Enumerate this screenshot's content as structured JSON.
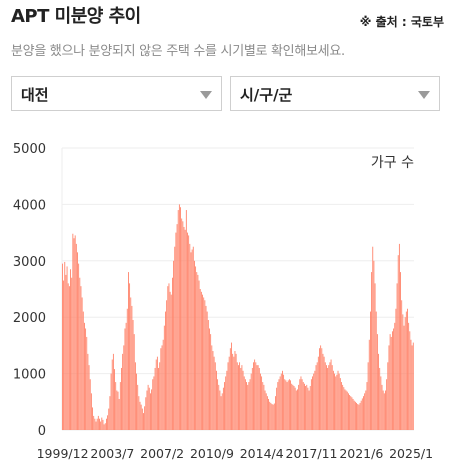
{
  "header": {
    "title": "APT 미분양 추이",
    "source": "※ 출처 : 국토부",
    "subtitle": "분양을 했으나 분양되지 않은 주택 수를 시기별로 확인해보세요."
  },
  "filters": {
    "region": "대전",
    "district": "시/구/군"
  },
  "colors": {
    "bar": "#ff8066",
    "grid": "#eeeeee",
    "axis": "#333333"
  },
  "chart_data": {
    "type": "bar",
    "series_label": "가구 수",
    "ylim": [
      0,
      5000
    ],
    "y_ticks": [
      0,
      1000,
      2000,
      3000,
      4000,
      5000
    ],
    "x_tick_labels": [
      "1999/12",
      "2003/7",
      "2007/2",
      "2010/9",
      "2014/4",
      "2017/11",
      "2021/6",
      "2025/1"
    ],
    "x_tick_index": [
      0,
      43,
      86,
      129,
      172,
      215,
      258,
      301
    ],
    "grid": "horizontal",
    "values": [
      2950,
      2650,
      2980,
      2750,
      2900,
      2600,
      2550,
      2850,
      2700,
      3480,
      3400,
      3450,
      3300,
      3150,
      2950,
      2700,
      2550,
      2350,
      2100,
      1900,
      1800,
      1650,
      1350,
      1150,
      900,
      650,
      400,
      250,
      200,
      150,
      200,
      250,
      200,
      150,
      220,
      180,
      100,
      120,
      200,
      260,
      380,
      600,
      1000,
      1250,
      1350,
      1080,
      850,
      700,
      680,
      550,
      850,
      1100,
      1350,
      1500,
      1800,
      1900,
      2150,
      2800,
      2600,
      2350,
      2200,
      1950,
      1700,
      1200,
      1000,
      800,
      600,
      500,
      450,
      380,
      300,
      420,
      580,
      700,
      800,
      750,
      650,
      720,
      900,
      950,
      1100,
      1250,
      1300,
      1100,
      1200,
      1450,
      1500,
      1600,
      1850,
      2100,
      2300,
      2550,
      2600,
      2450,
      2400,
      2700,
      3000,
      3250,
      3500,
      3650,
      3900,
      4000,
      3950,
      3750,
      3700,
      3600,
      3550,
      3900,
      3500,
      3450,
      3300,
      3150,
      3200,
      3250,
      3000,
      2900,
      2800,
      2750,
      2650,
      2500,
      2450,
      2400,
      2350,
      2300,
      2200,
      2100,
      1950,
      1800,
      1700,
      1500,
      1400,
      1300,
      1200,
      1050,
      900,
      800,
      700,
      600,
      650,
      750,
      850,
      950,
      1050,
      1200,
      1300,
      1450,
      1550,
      1350,
      1300,
      1400,
      1350,
      1200,
      1150,
      1200,
      1100,
      1150,
      1050,
      950,
      900,
      850,
      800,
      850,
      900,
      1000,
      1100,
      1200,
      1250,
      1200,
      1150,
      1150,
      1100,
      1000,
      950,
      850,
      800,
      700,
      650,
      600,
      550,
      500,
      480,
      460,
      450,
      470,
      600,
      750,
      850,
      900,
      950,
      1000,
      1050,
      980,
      900,
      880,
      850,
      880,
      900,
      880,
      820,
      800,
      780,
      750,
      700,
      720,
      800,
      900,
      950,
      900,
      850,
      820,
      780,
      800,
      750,
      700,
      780,
      900,
      950,
      1000,
      1050,
      1150,
      1200,
      1300,
      1450,
      1500,
      1450,
      1350,
      1300,
      1200,
      1150,
      1100,
      1150,
      1200,
      1250,
      1150,
      1050,
      1000,
      950,
      980,
      1050,
      1000,
      920,
      850,
      800,
      760,
      720,
      700,
      680,
      650,
      620,
      600,
      580,
      550,
      520,
      500,
      480,
      460,
      450,
      480,
      520,
      560,
      600,
      650,
      700,
      850,
      1200,
      1600,
      2100,
      2800,
      3250,
      3000,
      2600,
      2100,
      1700,
      1350,
      1100,
      950,
      800,
      700,
      650,
      700,
      900,
      1200,
      1500,
      1700,
      1650,
      1750,
      1800,
      1900,
      2150,
      2600,
      3100,
      3300,
      2800,
      2300,
      2050,
      1850,
      2000,
      2100,
      2150,
      1900,
      1750,
      1600,
      1500,
      1550
    ]
  }
}
